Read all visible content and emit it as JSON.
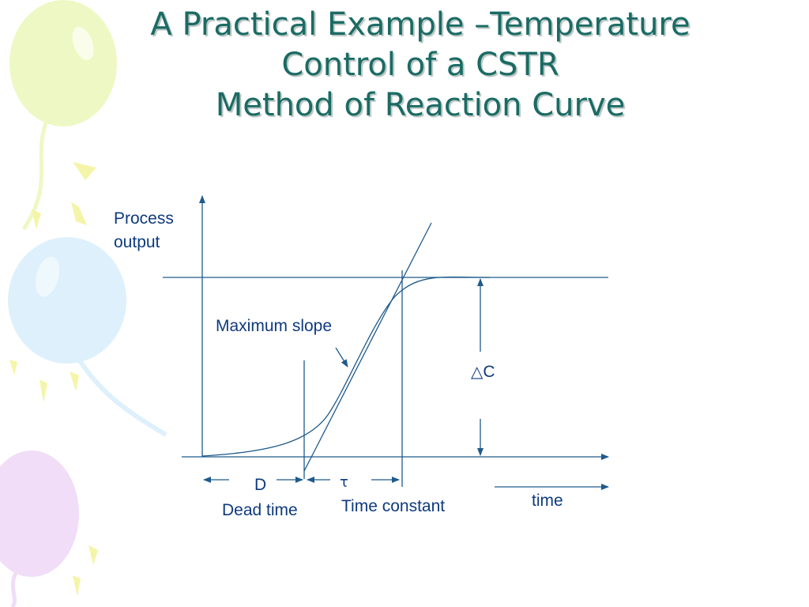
{
  "slide": {
    "title_lines": [
      "A Practical Example –Temperature",
      "Control of a CSTR",
      "Method of Reaction Curve"
    ]
  },
  "diagram": {
    "y_axis_label_lines": [
      "Process",
      "output"
    ],
    "x_axis_label": "time",
    "max_slope_label": "Maximum slope",
    "delta_symbol": "△",
    "delta_c_label": "C",
    "dead_time_symbol": "D",
    "dead_time_label": "Dead time",
    "time_constant_symbol": "τ",
    "time_constant_label": "Time constant"
  },
  "colors": {
    "title": "#1a6b64",
    "line": "#1f5a8c",
    "text": "#0e3a7e",
    "balloon_green": "#eef8c4",
    "balloon_blue": "#def0fb",
    "balloon_purple": "#f1ddf8",
    "streamer_yellow": "#f4f5a8"
  }
}
